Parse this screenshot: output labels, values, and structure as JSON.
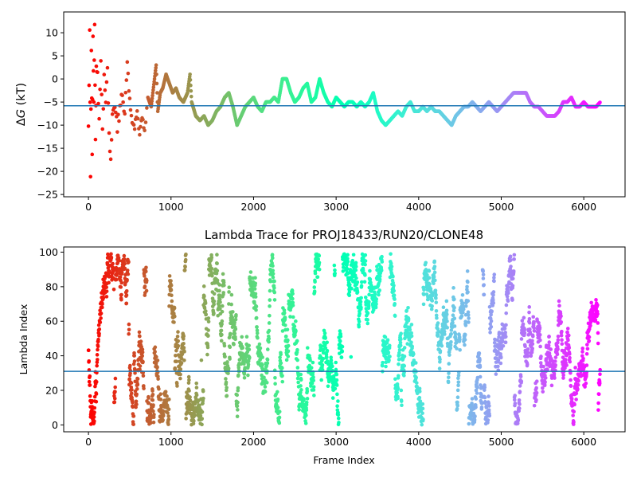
{
  "chart_data": [
    {
      "type": "scatter",
      "title": "",
      "xlabel": "",
      "ylabel": "ΔG (kT)",
      "ylabel_parts": {
        "symbol": "Δ",
        "var": "G",
        "unit": " (kT)"
      },
      "xlim": [
        -300,
        6500
      ],
      "ylim": [
        -25.5,
        14.5
      ],
      "xticks": [
        0,
        1000,
        2000,
        3000,
        4000,
        5000,
        6000
      ],
      "yticks": [
        10,
        5,
        0,
        -5,
        -10,
        -15,
        -20,
        -25
      ],
      "hline": -5.8,
      "hline_color": "#1f77b4",
      "colormap": "rainbow",
      "x_max_frame": 6200,
      "trace_points": [
        [
          0,
          -10
        ],
        [
          15,
          10
        ],
        [
          25,
          -20
        ],
        [
          35,
          5
        ],
        [
          45,
          -15
        ],
        [
          55,
          8
        ],
        [
          65,
          -5
        ],
        [
          75,
          12
        ],
        [
          85,
          -12
        ],
        [
          95,
          3
        ],
        [
          110,
          0
        ],
        [
          130,
          -8
        ],
        [
          150,
          5
        ],
        [
          170,
          -10
        ],
        [
          190,
          0
        ],
        [
          210,
          -5
        ],
        [
          230,
          3
        ],
        [
          250,
          -12
        ],
        [
          270,
          -18
        ],
        [
          290,
          -8
        ],
        [
          320,
          -5
        ],
        [
          350,
          -10
        ],
        [
          380,
          -7
        ],
        [
          410,
          -3
        ],
        [
          440,
          -8
        ],
        [
          470,
          4
        ],
        [
          500,
          -5
        ],
        [
          530,
          -9
        ],
        [
          560,
          -11
        ],
        [
          590,
          -7
        ],
        [
          620,
          -12
        ],
        [
          650,
          -8
        ],
        [
          680,
          -10
        ],
        [
          720,
          -4
        ],
        [
          760,
          -6
        ],
        [
          800,
          0
        ],
        [
          820,
          3
        ],
        [
          840,
          -7
        ],
        [
          870,
          -3
        ],
        [
          900,
          -2
        ],
        [
          940,
          1
        ],
        [
          980,
          -1
        ],
        [
          1020,
          -3
        ],
        [
          1060,
          -2
        ],
        [
          1100,
          -4
        ],
        [
          1150,
          -5
        ],
        [
          1200,
          -3
        ],
        [
          1230,
          1
        ],
        [
          1250,
          -5
        ],
        [
          1300,
          -8
        ],
        [
          1350,
          -9
        ],
        [
          1400,
          -8
        ],
        [
          1450,
          -10
        ],
        [
          1500,
          -9
        ],
        [
          1550,
          -7
        ],
        [
          1600,
          -6
        ],
        [
          1650,
          -4
        ],
        [
          1700,
          -3
        ],
        [
          1750,
          -6
        ],
        [
          1800,
          -10
        ],
        [
          1850,
          -8
        ],
        [
          1900,
          -6
        ],
        [
          1950,
          -5
        ],
        [
          2000,
          -4
        ],
        [
          2050,
          -6
        ],
        [
          2100,
          -7
        ],
        [
          2150,
          -5
        ],
        [
          2200,
          -5
        ],
        [
          2250,
          -4
        ],
        [
          2300,
          -5
        ],
        [
          2350,
          0
        ],
        [
          2400,
          0
        ],
        [
          2450,
          -3
        ],
        [
          2500,
          -5
        ],
        [
          2550,
          -4
        ],
        [
          2600,
          -2
        ],
        [
          2650,
          -1
        ],
        [
          2700,
          -5
        ],
        [
          2750,
          -4
        ],
        [
          2800,
          0
        ],
        [
          2850,
          -3
        ],
        [
          2900,
          -5
        ],
        [
          2950,
          -6
        ],
        [
          3000,
          -4
        ],
        [
          3050,
          -5
        ],
        [
          3100,
          -6
        ],
        [
          3150,
          -5
        ],
        [
          3200,
          -5
        ],
        [
          3250,
          -6
        ],
        [
          3300,
          -5
        ],
        [
          3350,
          -6
        ],
        [
          3400,
          -5
        ],
        [
          3450,
          -3
        ],
        [
          3500,
          -7
        ],
        [
          3550,
          -9
        ],
        [
          3600,
          -10
        ],
        [
          3650,
          -9
        ],
        [
          3700,
          -8
        ],
        [
          3750,
          -7
        ],
        [
          3800,
          -8
        ],
        [
          3850,
          -6
        ],
        [
          3900,
          -5
        ],
        [
          3950,
          -7
        ],
        [
          4000,
          -7
        ],
        [
          4050,
          -6
        ],
        [
          4100,
          -7
        ],
        [
          4150,
          -6
        ],
        [
          4200,
          -7
        ],
        [
          4250,
          -7
        ],
        [
          4300,
          -8
        ],
        [
          4350,
          -9
        ],
        [
          4400,
          -10
        ],
        [
          4450,
          -8
        ],
        [
          4500,
          -7
        ],
        [
          4550,
          -6
        ],
        [
          4600,
          -6
        ],
        [
          4650,
          -5
        ],
        [
          4700,
          -6
        ],
        [
          4750,
          -7
        ],
        [
          4800,
          -6
        ],
        [
          4850,
          -5
        ],
        [
          4900,
          -6
        ],
        [
          4950,
          -7
        ],
        [
          5000,
          -6
        ],
        [
          5050,
          -5
        ],
        [
          5100,
          -4
        ],
        [
          5150,
          -3
        ],
        [
          5200,
          -3
        ],
        [
          5250,
          -3
        ],
        [
          5300,
          -3
        ],
        [
          5350,
          -5
        ],
        [
          5400,
          -6
        ],
        [
          5450,
          -6
        ],
        [
          5500,
          -7
        ],
        [
          5550,
          -8
        ],
        [
          5600,
          -8
        ],
        [
          5650,
          -8
        ],
        [
          5700,
          -7
        ],
        [
          5750,
          -5
        ],
        [
          5800,
          -5
        ],
        [
          5850,
          -4
        ],
        [
          5900,
          -6
        ],
        [
          5950,
          -6
        ],
        [
          6000,
          -5
        ],
        [
          6050,
          -6
        ],
        [
          6100,
          -6
        ],
        [
          6150,
          -6
        ],
        [
          6200,
          -5
        ]
      ]
    },
    {
      "type": "scatter",
      "title": "Lambda Trace for PROJ18433/RUN20/CLONE48",
      "xlabel": "Frame Index",
      "ylabel": "Lambda Index",
      "xlim": [
        -300,
        6500
      ],
      "ylim": [
        -4,
        103
      ],
      "xticks": [
        0,
        1000,
        2000,
        3000,
        4000,
        5000,
        6000
      ],
      "yticks": [
        0,
        20,
        40,
        60,
        80,
        100
      ],
      "hline": 31,
      "hline_color": "#1f77b4",
      "colormap": "rainbow",
      "n_frames": 6200,
      "lambda_range": [
        0,
        99
      ],
      "seed": 18433
    }
  ]
}
